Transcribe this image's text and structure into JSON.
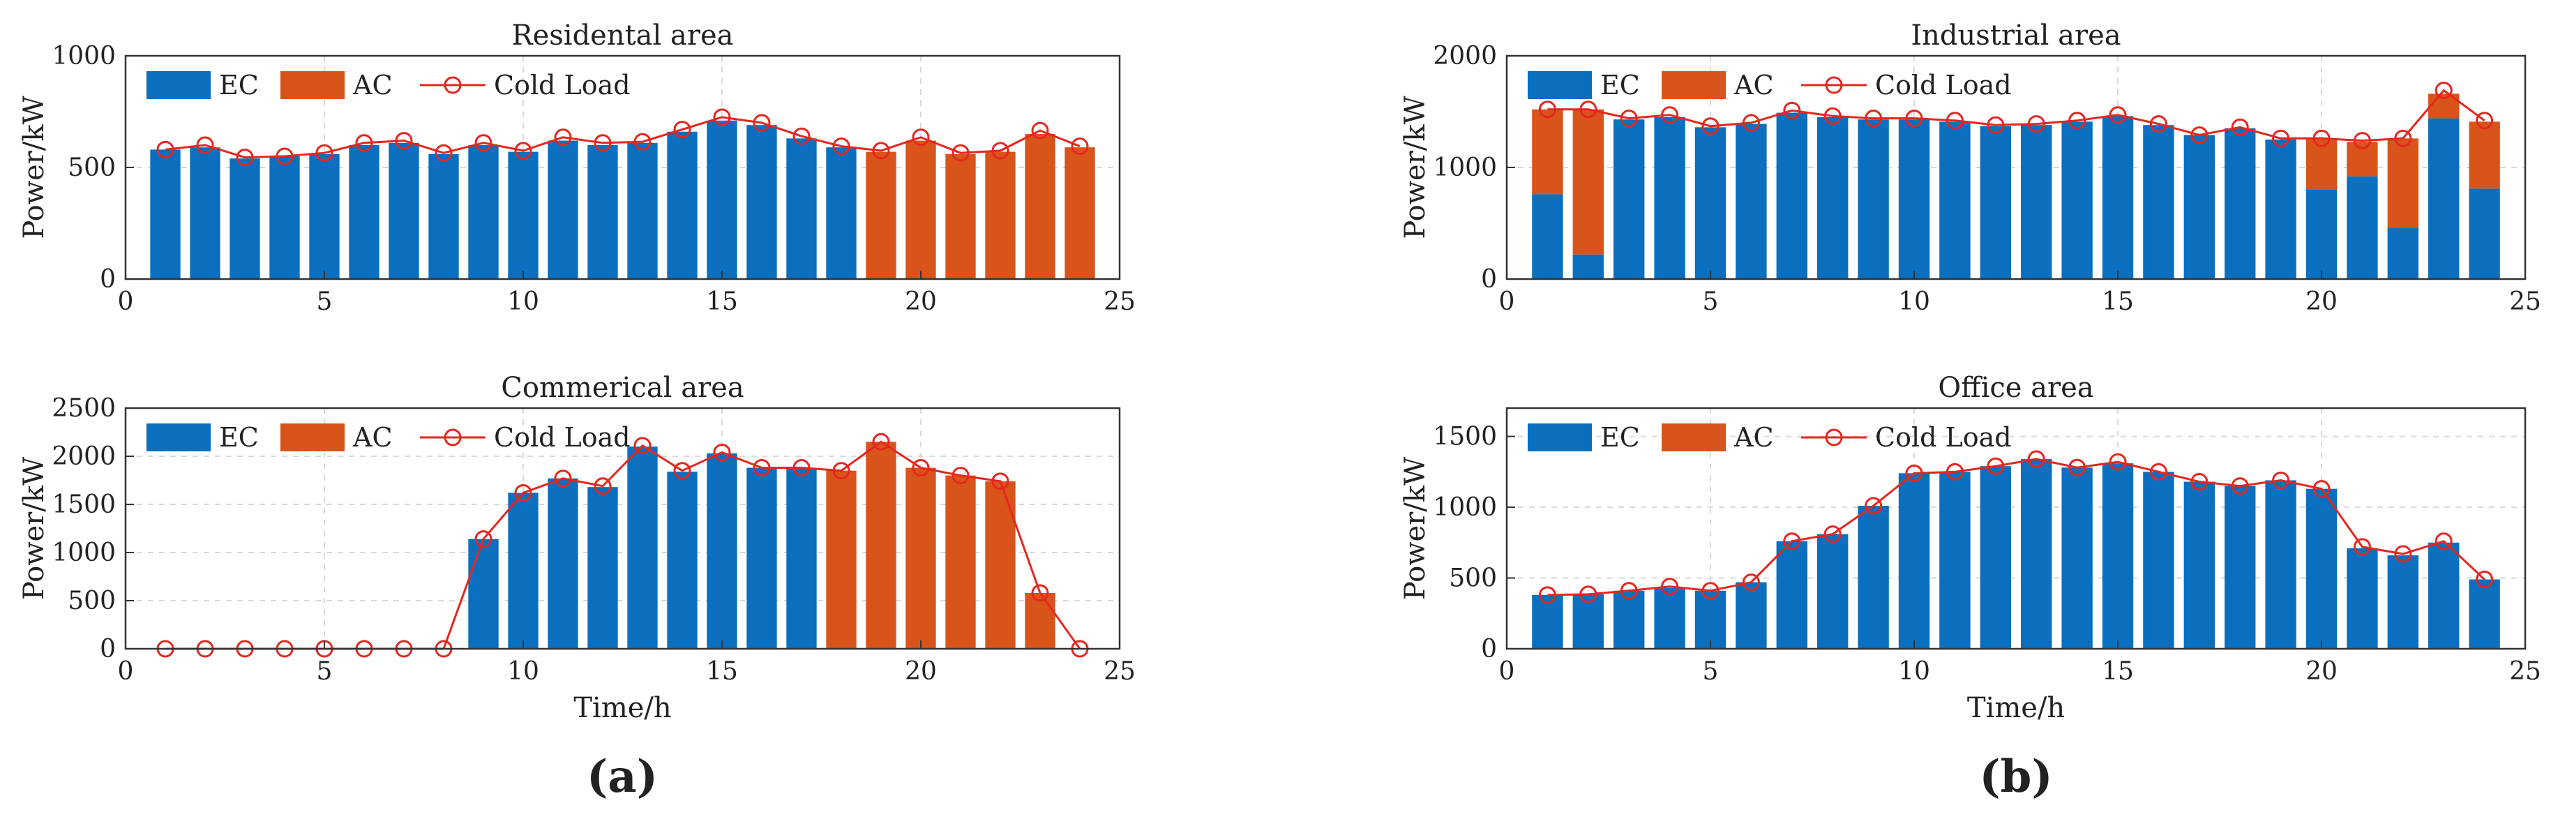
{
  "colors": {
    "ec": "#0a6fbe",
    "ac": "#d9541a",
    "load": "#e6261f",
    "grid": "#d9d9d9",
    "axis": "#333333"
  },
  "legend": {
    "ec": "EC",
    "ac": "AC",
    "load": "Cold Load"
  },
  "panel_labels": {
    "a": "(a)",
    "b": "(b)"
  },
  "chart_data": [
    {
      "type": "bar",
      "title": "Residental area",
      "xlabel": "",
      "ylabel": "Power/kW",
      "xlim": [
        0,
        25
      ],
      "ylim": [
        0,
        1000
      ],
      "xticks": [
        0,
        5,
        10,
        15,
        20,
        25
      ],
      "yticks": [
        0,
        500,
        1000
      ],
      "x": [
        1,
        2,
        3,
        4,
        5,
        6,
        7,
        8,
        9,
        10,
        11,
        12,
        13,
        14,
        15,
        16,
        17,
        18,
        19,
        20,
        21,
        22,
        23,
        24
      ],
      "series": [
        {
          "name": "EC",
          "values": [
            580,
            590,
            540,
            550,
            560,
            600,
            610,
            560,
            600,
            570,
            620,
            600,
            610,
            660,
            710,
            690,
            630,
            590,
            0,
            0,
            0,
            0,
            0,
            0
          ]
        },
        {
          "name": "AC",
          "values": [
            0,
            0,
            0,
            0,
            0,
            0,
            0,
            0,
            0,
            0,
            0,
            0,
            0,
            0,
            0,
            0,
            0,
            0,
            570,
            620,
            560,
            570,
            650,
            590
          ]
        },
        {
          "name": "Cold Load",
          "values": [
            580,
            600,
            545,
            550,
            565,
            610,
            620,
            565,
            610,
            575,
            635,
            610,
            615,
            670,
            725,
            700,
            640,
            595,
            575,
            635,
            565,
            575,
            665,
            595
          ]
        }
      ],
      "legend_position": "top-left"
    },
    {
      "type": "bar",
      "title": "Commerical area",
      "xlabel": "Time/h",
      "ylabel": "Power/kW",
      "xlim": [
        0,
        25
      ],
      "ylim": [
        0,
        2500
      ],
      "xticks": [
        0,
        5,
        10,
        15,
        20,
        25
      ],
      "yticks": [
        0,
        500,
        1000,
        1500,
        2000,
        2500
      ],
      "x": [
        1,
        2,
        3,
        4,
        5,
        6,
        7,
        8,
        9,
        10,
        11,
        12,
        13,
        14,
        15,
        16,
        17,
        18,
        19,
        20,
        21,
        22,
        23,
        24
      ],
      "series": [
        {
          "name": "EC",
          "values": [
            0,
            0,
            0,
            0,
            0,
            0,
            0,
            0,
            1140,
            1620,
            1770,
            1680,
            2100,
            1840,
            2030,
            1880,
            1880,
            0,
            0,
            0,
            0,
            0,
            0,
            0
          ]
        },
        {
          "name": "AC",
          "values": [
            0,
            0,
            0,
            0,
            0,
            0,
            0,
            0,
            0,
            0,
            0,
            0,
            0,
            0,
            0,
            0,
            0,
            1850,
            2150,
            1880,
            1800,
            1740,
            580,
            0
          ]
        },
        {
          "name": "Cold Load",
          "values": [
            0,
            0,
            0,
            0,
            0,
            0,
            0,
            0,
            1140,
            1620,
            1770,
            1690,
            2110,
            1850,
            2040,
            1880,
            1880,
            1850,
            2150,
            1880,
            1800,
            1740,
            580,
            0
          ]
        }
      ],
      "legend_position": "top-left"
    },
    {
      "type": "bar",
      "title": "Industrial area",
      "xlabel": "",
      "ylabel": "Power/kW",
      "xlim": [
        0,
        25
      ],
      "ylim": [
        0,
        2000
      ],
      "xticks": [
        0,
        5,
        10,
        15,
        20,
        25
      ],
      "yticks": [
        0,
        1000,
        2000
      ],
      "x": [
        1,
        2,
        3,
        4,
        5,
        6,
        7,
        8,
        9,
        10,
        11,
        12,
        13,
        14,
        15,
        16,
        17,
        18,
        19,
        20,
        21,
        22,
        23,
        24
      ],
      "series": [
        {
          "name": "EC",
          "values": [
            760,
            220,
            1430,
            1450,
            1360,
            1390,
            1490,
            1450,
            1430,
            1430,
            1410,
            1370,
            1380,
            1410,
            1460,
            1380,
            1290,
            1350,
            1250,
            800,
            920,
            460,
            1440,
            810
          ]
        },
        {
          "name": "AC",
          "values": [
            760,
            1300,
            0,
            0,
            0,
            0,
            0,
            0,
            0,
            0,
            0,
            0,
            0,
            0,
            0,
            0,
            0,
            0,
            0,
            460,
            310,
            800,
            220,
            600
          ]
        },
        {
          "name": "Cold Load",
          "values": [
            1520,
            1520,
            1440,
            1470,
            1370,
            1400,
            1510,
            1460,
            1440,
            1440,
            1420,
            1380,
            1390,
            1420,
            1470,
            1390,
            1290,
            1360,
            1260,
            1260,
            1240,
            1260,
            1690,
            1420
          ]
        }
      ],
      "legend_position": "top-left"
    },
    {
      "type": "bar",
      "title": "Office area",
      "xlabel": "Time/h",
      "ylabel": "Power/kW",
      "xlim": [
        0,
        25
      ],
      "ylim": [
        0,
        1700
      ],
      "xticks": [
        0,
        5,
        10,
        15,
        20,
        25
      ],
      "yticks": [
        0,
        500,
        1000,
        1500
      ],
      "x": [
        1,
        2,
        3,
        4,
        5,
        6,
        7,
        8,
        9,
        10,
        11,
        12,
        13,
        14,
        15,
        16,
        17,
        18,
        19,
        20,
        21,
        22,
        23,
        24
      ],
      "series": [
        {
          "name": "EC",
          "values": [
            380,
            385,
            410,
            430,
            410,
            470,
            760,
            810,
            1010,
            1240,
            1250,
            1290,
            1340,
            1280,
            1310,
            1250,
            1180,
            1150,
            1190,
            1130,
            710,
            660,
            750,
            490
          ]
        },
        {
          "name": "AC",
          "values": [
            0,
            0,
            0,
            0,
            0,
            0,
            0,
            0,
            0,
            0,
            0,
            0,
            0,
            0,
            0,
            0,
            0,
            0,
            0,
            0,
            0,
            0,
            0,
            0
          ]
        },
        {
          "name": "Cold Load",
          "values": [
            380,
            385,
            410,
            440,
            410,
            470,
            760,
            810,
            1010,
            1240,
            1250,
            1290,
            1340,
            1280,
            1320,
            1250,
            1180,
            1150,
            1190,
            1130,
            720,
            670,
            760,
            490
          ]
        }
      ],
      "legend_position": "top-left"
    }
  ]
}
